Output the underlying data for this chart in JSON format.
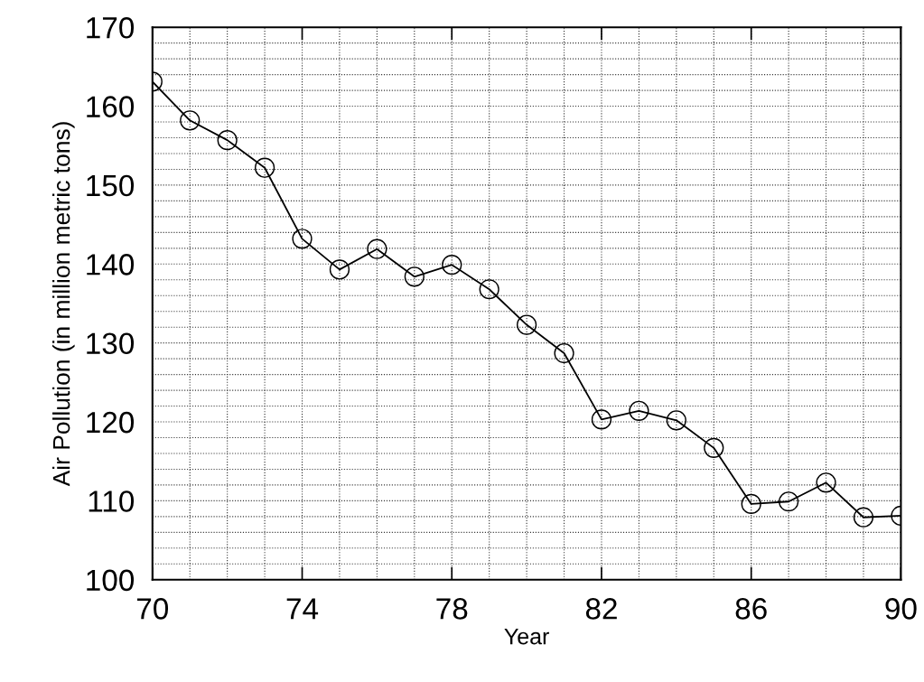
{
  "chart_data": {
    "type": "line",
    "xlabel": "Year",
    "ylabel": "Air Pollution (in million metric tons)",
    "x": [
      70,
      71,
      72,
      73,
      74,
      75,
      76,
      77,
      78,
      79,
      80,
      81,
      82,
      83,
      84,
      85,
      86,
      87,
      88,
      89,
      90
    ],
    "series": [
      {
        "color": "#000000",
        "values": [
          163.1,
          158.2,
          155.7,
          152.2,
          143.2,
          139.3,
          141.9,
          138.4,
          139.9,
          136.8,
          132.3,
          128.7,
          120.3,
          121.4,
          120.2,
          116.7,
          109.6,
          109.9,
          112.3,
          107.9,
          108.1
        ]
      }
    ],
    "xlim": [
      70,
      90
    ],
    "xticks": [
      70,
      {
        "value": 71,
        "label": null
      },
      {
        "value": 72,
        "label": null
      },
      {
        "value": 73,
        "label": null
      },
      74,
      {
        "value": 75,
        "label": null
      },
      {
        "value": 76,
        "label": null
      },
      {
        "value": 77,
        "label": null
      },
      78,
      {
        "value": 79,
        "label": null
      },
      {
        "value": 80,
        "label": null
      },
      {
        "value": 81,
        "label": null
      },
      82,
      {
        "value": 83,
        "label": null
      },
      {
        "value": 84,
        "label": null
      },
      {
        "value": 85,
        "label": null
      },
      86,
      {
        "value": 87,
        "label": null
      },
      {
        "value": 88,
        "label": null
      },
      {
        "value": 89,
        "label": null
      },
      90
    ],
    "ylim": [
      100,
      170
    ],
    "yticks": [
      100,
      {
        "value": 102,
        "label": null
      },
      {
        "value": 104,
        "label": null
      },
      {
        "value": 106,
        "label": null
      },
      {
        "value": 108,
        "label": null
      },
      110,
      {
        "value": 112,
        "label": null
      },
      {
        "value": 114,
        "label": null
      },
      {
        "value": 116,
        "label": null
      },
      {
        "value": 118,
        "label": null
      },
      120,
      {
        "value": 122,
        "label": null
      },
      {
        "value": 124,
        "label": null
      },
      {
        "value": 126,
        "label": null
      },
      {
        "value": 128,
        "label": null
      },
      130,
      {
        "value": 132,
        "label": null
      },
      {
        "value": 134,
        "label": null
      },
      {
        "value": 136,
        "label": null
      },
      {
        "value": 138,
        "label": null
      },
      140,
      {
        "value": 142,
        "label": null
      },
      {
        "value": 144,
        "label": null
      },
      {
        "value": 146,
        "label": null
      },
      {
        "value": 148,
        "label": null
      },
      150,
      {
        "value": 152,
        "label": null
      },
      {
        "value": 154,
        "label": null
      },
      {
        "value": 156,
        "label": null
      },
      {
        "value": 158,
        "label": null
      },
      160,
      {
        "value": 162,
        "label": null
      },
      {
        "value": 164,
        "label": null
      },
      {
        "value": 166,
        "label": null
      },
      {
        "value": 168,
        "label": null
      },
      170
    ],
    "grid": true,
    "marker": "circle",
    "line_style": "solid"
  }
}
